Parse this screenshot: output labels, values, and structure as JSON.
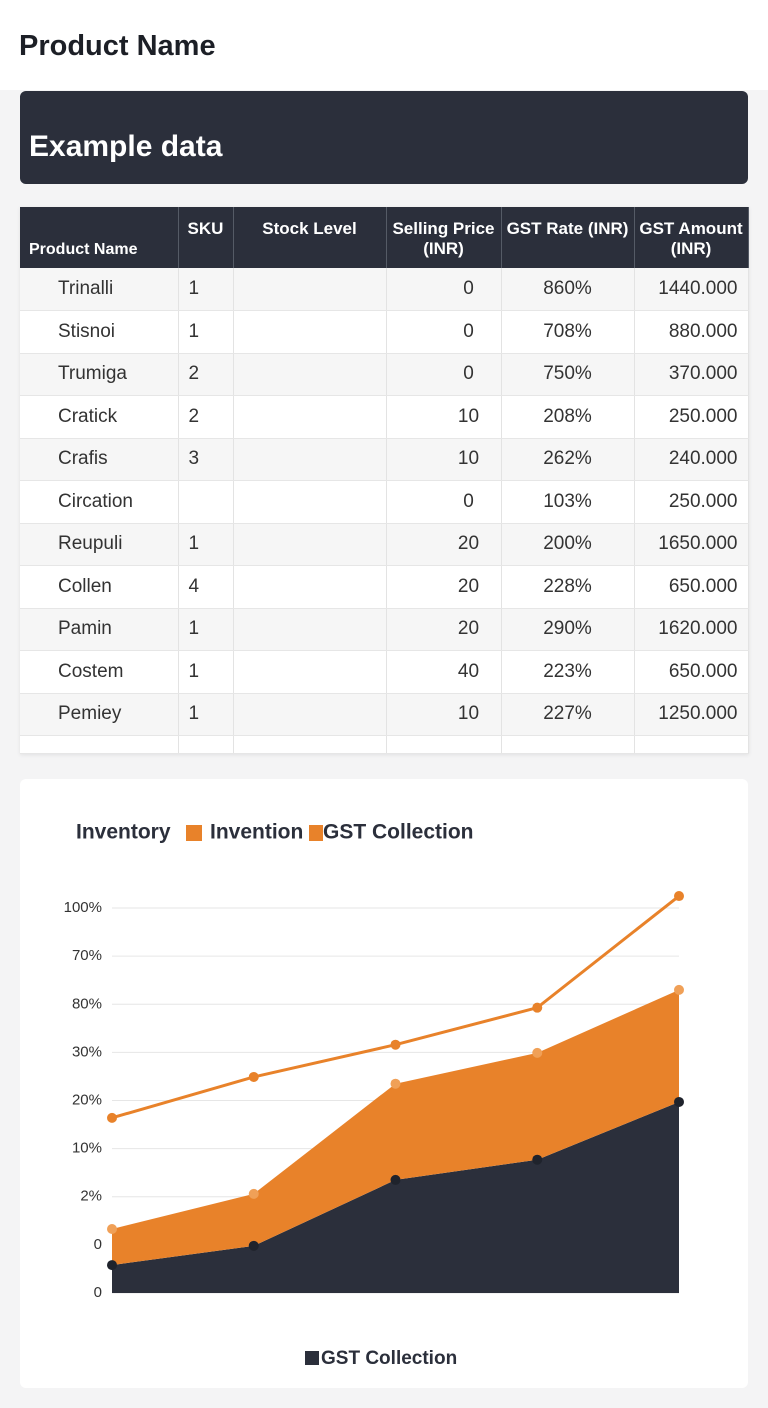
{
  "header": {
    "title": "Product Name"
  },
  "banner": {
    "title": "Example data"
  },
  "table": {
    "columns": [
      "Product Name",
      "SKU",
      "Stock Level",
      "Selling Price (INR)",
      "GST Rate (INR)",
      "GST Amount (INR)"
    ],
    "rows": [
      [
        "Trinalli",
        1,
        null,
        0,
        "860%",
        "1440.000"
      ],
      [
        "Stisnoi",
        1,
        null,
        0,
        "708%",
        "880.000"
      ],
      [
        "Trumiga",
        2,
        null,
        0,
        "750%",
        "370.000"
      ],
      [
        "Cratick",
        2,
        null,
        10,
        "208%",
        "250.000"
      ],
      [
        "Crafis",
        3,
        null,
        10,
        "262%",
        "240.000"
      ],
      [
        "Circation",
        null,
        null,
        0,
        "103%",
        "250.000"
      ],
      [
        "Reupuli",
        1,
        null,
        20,
        "200%",
        "1650.000"
      ],
      [
        "Collen",
        4,
        null,
        20,
        "228%",
        "650.000"
      ],
      [
        "Pamin",
        1,
        null,
        20,
        "290%",
        "1620.000"
      ],
      [
        "Costem",
        1,
        null,
        40,
        "223%",
        "650.000"
      ],
      [
        "Pemiey",
        1,
        null,
        10,
        "227%",
        "1250.000"
      ]
    ]
  },
  "chart_data": {
    "type": "stacked-area-line",
    "legend_title": "Inventory",
    "ylim": [
      0,
      8.5
    ],
    "yticks": [
      {
        "value": 0,
        "label": "0"
      },
      {
        "value": 1,
        "label": "0"
      },
      {
        "value": 2,
        "label": "2%"
      },
      {
        "value": 3,
        "label": "10%"
      },
      {
        "value": 4,
        "label": "20%"
      },
      {
        "value": 5,
        "label": "30%"
      },
      {
        "value": 6,
        "label": "80%"
      },
      {
        "value": 7,
        "label": "70%"
      },
      {
        "value": 8,
        "label": "100%"
      }
    ],
    "grid": true,
    "series": [
      {
        "name": "GST Collection",
        "kind": "area",
        "color": "#2b2f3b",
        "values": [
          0.58,
          0.98,
          2.35,
          2.77,
          3.97
        ]
      },
      {
        "name": "GST Collection",
        "kind": "area",
        "color": "#e8822a",
        "values": [
          0.75,
          1.08,
          2.0,
          2.22,
          2.33
        ]
      },
      {
        "name": "Invention",
        "kind": "line",
        "color": "#e8822a",
        "values": [
          3.64,
          4.49,
          5.16,
          5.93,
          8.25
        ]
      }
    ]
  }
}
